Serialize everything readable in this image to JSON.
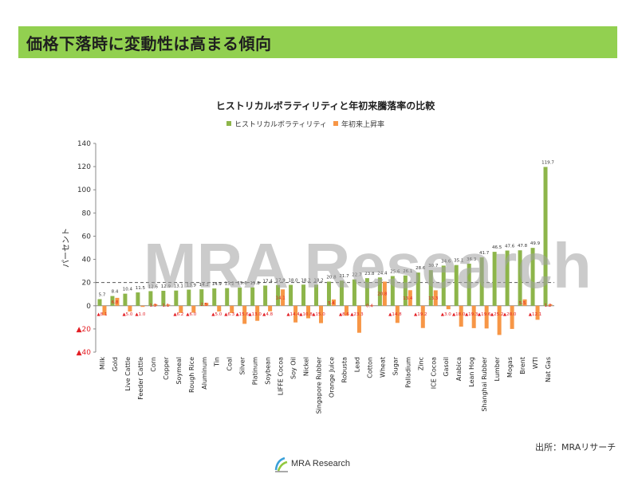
{
  "header": {
    "title": "価格下落時に変動性は高まる傾向"
  },
  "watermark": "MRA Research",
  "source": "出所：MRAリサーチ",
  "logo": {
    "text": "MRA Research"
  },
  "colors": {
    "banner": "#92d050",
    "volatility": "#8db54a",
    "ytd": "#f79646",
    "negative_marker": "#e31e24"
  },
  "chart_data": {
    "type": "bar",
    "title": "ヒストリカルボラティリティと年初来騰落率の比較",
    "ylabel": "パーセント",
    "xlabel": "",
    "ylim": [
      -40,
      140
    ],
    "yticks": [
      {
        "value": 140,
        "label": "140"
      },
      {
        "value": 120,
        "label": "120"
      },
      {
        "value": 100,
        "label": "100"
      },
      {
        "value": 80,
        "label": "80"
      },
      {
        "value": 60,
        "label": "60"
      },
      {
        "value": 40,
        "label": "40"
      },
      {
        "value": 20,
        "label": "20"
      },
      {
        "value": 0,
        "label": "0"
      },
      {
        "value": -20,
        "label": "▲20"
      },
      {
        "value": -40,
        "label": "▲40"
      }
    ],
    "reference_line": 20,
    "legend": [
      "ヒストリカルボラティリティ",
      "年初来上昇率"
    ],
    "legend_position": "top",
    "categories": [
      "Milk",
      "Gold",
      "Live Cattle",
      "Feeder Cattle",
      "Corn",
      "Copper",
      "Soymeal",
      "Rough Rice",
      "Aluminum",
      "Tin",
      "Coal",
      "Silver",
      "Platinum",
      "Soybean",
      "LIFFE Cocoa",
      "Soy Oil",
      "Nickel",
      "Singapore Rubber",
      "Orange Juice",
      "Robusta",
      "Lead",
      "Cotton",
      "Wheat",
      "Sugar",
      "Palladium",
      "Zinc",
      "ICE Cocoa",
      "Gasoil",
      "Arabica",
      "Lean Hog",
      "Shanghai Rubber",
      "Lumber",
      "Mogas",
      "Brent",
      "WTI",
      "Nat Gas"
    ],
    "series": [
      {
        "name": "ヒストリカルボラティリティ",
        "values": [
          5.7,
          8.4,
          10.4,
          11.5,
          12.6,
          12.9,
          13.1,
          13.9,
          14.2,
          14.9,
          15.2,
          15.6,
          15.8,
          17.4,
          17.9,
          18.0,
          18.2,
          18.2,
          20.8,
          21.7,
          22.7,
          23.8,
          24.4,
          25.6,
          26.1,
          28.6,
          30.7,
          34.6,
          35.1,
          36.3,
          41.7,
          46.5,
          47.6,
          47.8,
          49.9,
          119.7
        ],
        "labels": [
          "5.7",
          "8.4",
          "10.4",
          "11.5",
          "12.6",
          "12.9",
          "13.1",
          "13.9",
          "14.2",
          "14.9",
          "15.2",
          "15.6",
          "15.8",
          "17.4",
          "17.9",
          "18.0",
          "18.2",
          "18.2",
          "20.8",
          "21.7",
          "22.7",
          "23.8",
          "24.4",
          "25.6",
          "26.1",
          "28.6",
          "30.7",
          "34.6",
          "35.1",
          "36.3",
          "41.7",
          "46.5",
          "47.6",
          "47.8",
          "49.9",
          "119.7"
        ]
      },
      {
        "name": "年初来上昇率",
        "values": [
          -8.1,
          6.8,
          -5.0,
          -1.0,
          1.3,
          1.1,
          -6.2,
          -6.0,
          2.5,
          -5.0,
          -6.3,
          -15.6,
          -13.0,
          -4.8,
          14.1,
          -14.4,
          -10.8,
          -15.0,
          5.4,
          -8.6,
          -23.3,
          0.4,
          20.8,
          -14.8,
          13.4,
          -19.2,
          13.3,
          -3.0,
          -18.0,
          -19.3,
          -19.6,
          -25.2,
          -20.0,
          5.5,
          -12.1,
          1.2
        ],
        "labels": [
          "▲8.1",
          "6.8",
          "▲5.0",
          "▲1.0",
          "1.3",
          "1.1",
          "▲6.2",
          "▲6.0",
          "2.5",
          "▲5.0",
          "▲6.3",
          "▲15.6",
          "▲13.0",
          "▲4.8",
          "14.1",
          "▲14.4",
          "▲10.8",
          "▲15.0",
          "5.4",
          "▲8.6",
          "▲23.3",
          "0.4",
          "20.8",
          "▲14.8",
          "13.4",
          "▲19.2",
          "13.3",
          "▲3.0",
          "▲18.0",
          "▲19.3",
          "▲19.6",
          "▲25.2",
          "▲20.0",
          "5.5",
          "▲12.1",
          "1.2"
        ]
      }
    ]
  }
}
